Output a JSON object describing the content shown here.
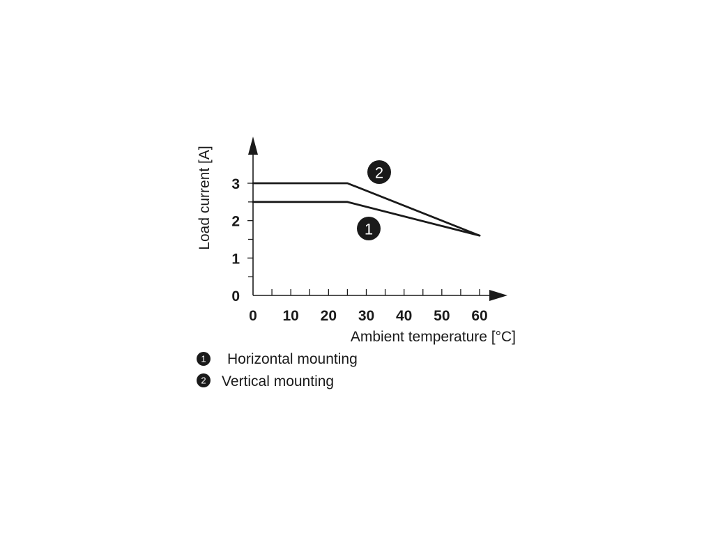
{
  "chart_data": {
    "type": "line",
    "title": "",
    "xlabel": "Ambient temperature [°C]",
    "ylabel": "Load current [A]",
    "xlim": [
      0,
      60
    ],
    "ylim": [
      0,
      3
    ],
    "x_ticks": [
      0,
      10,
      20,
      30,
      40,
      50,
      60
    ],
    "x_tick_labels": [
      "0",
      "10",
      "20",
      "30",
      "40",
      "50",
      "60"
    ],
    "y_ticks": [
      0,
      1,
      2,
      3
    ],
    "y_tick_labels": [
      "0",
      "1",
      "2",
      "3"
    ],
    "grid": false,
    "series": [
      {
        "marker": "1",
        "name": "Horizontal mounting",
        "x": [
          0,
          25,
          60
        ],
        "y": [
          2.5,
          2.5,
          1.6
        ]
      },
      {
        "marker": "2",
        "name": "Vertical mounting",
        "x": [
          0,
          25,
          60
        ],
        "y": [
          3.0,
          3.0,
          1.6
        ]
      }
    ],
    "legend": [
      {
        "marker": "1",
        "label": "Horizontal mounting"
      },
      {
        "marker": "2",
        "label": "Vertical mounting"
      }
    ],
    "colors": {
      "line": "#1a1a1a",
      "badge": "#1a1a1a",
      "badge_text": "#ffffff"
    }
  }
}
